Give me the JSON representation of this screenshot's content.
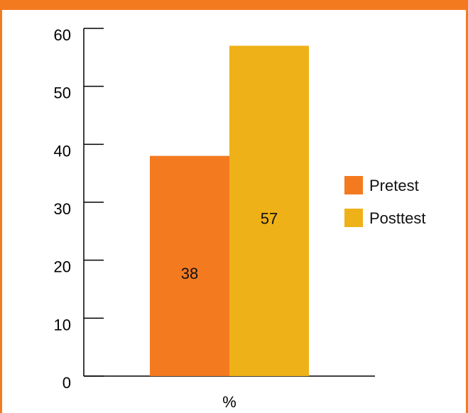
{
  "chart_data": {
    "type": "bar",
    "categories": [
      "%"
    ],
    "series": [
      {
        "name": "Pretest",
        "values": [
          38
        ]
      },
      {
        "name": "Posttest",
        "values": [
          57
        ]
      }
    ],
    "data_labels": [
      "38",
      "57"
    ],
    "xlabel": "%",
    "ylim": [
      0,
      60
    ],
    "yticks": [
      0,
      10,
      20,
      30,
      40,
      50,
      60
    ],
    "legend": "right",
    "grid": false,
    "colors": {
      "Pretest": "#f47a20",
      "Posttest": "#eeb117",
      "frame": "#f47a20"
    }
  }
}
